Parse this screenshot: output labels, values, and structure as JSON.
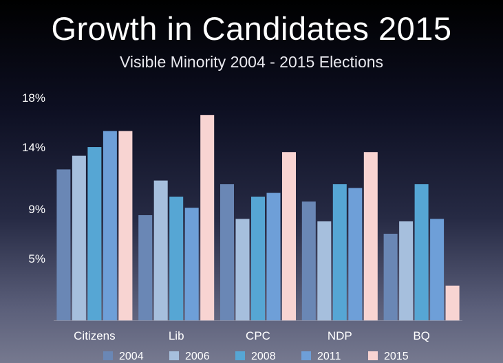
{
  "title": "Growth in Candidates 2015",
  "subtitle": "Visible Minority 2004 - 2015 Elections",
  "chart_data": {
    "type": "bar",
    "title": "Growth in Candidates 2015",
    "subtitle": "Visible Minority 2004 - 2015 Elections",
    "xlabel": "",
    "ylabel": "",
    "categories": [
      "Citizens",
      "Lib",
      "CPC",
      "NDP",
      "BQ"
    ],
    "series": [
      {
        "name": "2004",
        "color": "#6a87b5",
        "values": [
          12.2,
          8.5,
          11.0,
          9.6,
          7.0
        ]
      },
      {
        "name": "2006",
        "color": "#a6bfdd",
        "values": [
          13.3,
          11.3,
          8.2,
          8.0,
          8.0
        ]
      },
      {
        "name": "2008",
        "color": "#56a6d4",
        "values": [
          14.0,
          10.0,
          10.0,
          11.0,
          11.0
        ]
      },
      {
        "name": "2011",
        "color": "#6e9fd8",
        "values": [
          15.3,
          9.1,
          10.3,
          10.7,
          8.2
        ]
      },
      {
        "name": "2015",
        "color": "#f8d4d2",
        "values": [
          15.3,
          16.6,
          13.6,
          13.6,
          2.8
        ]
      }
    ],
    "ylim": [
      0,
      18
    ],
    "yticks": [
      5,
      9,
      14,
      18
    ],
    "ytick_labels": [
      "5%",
      "9%",
      "14%",
      "18%"
    ],
    "grid": false,
    "legend": "bottom"
  }
}
